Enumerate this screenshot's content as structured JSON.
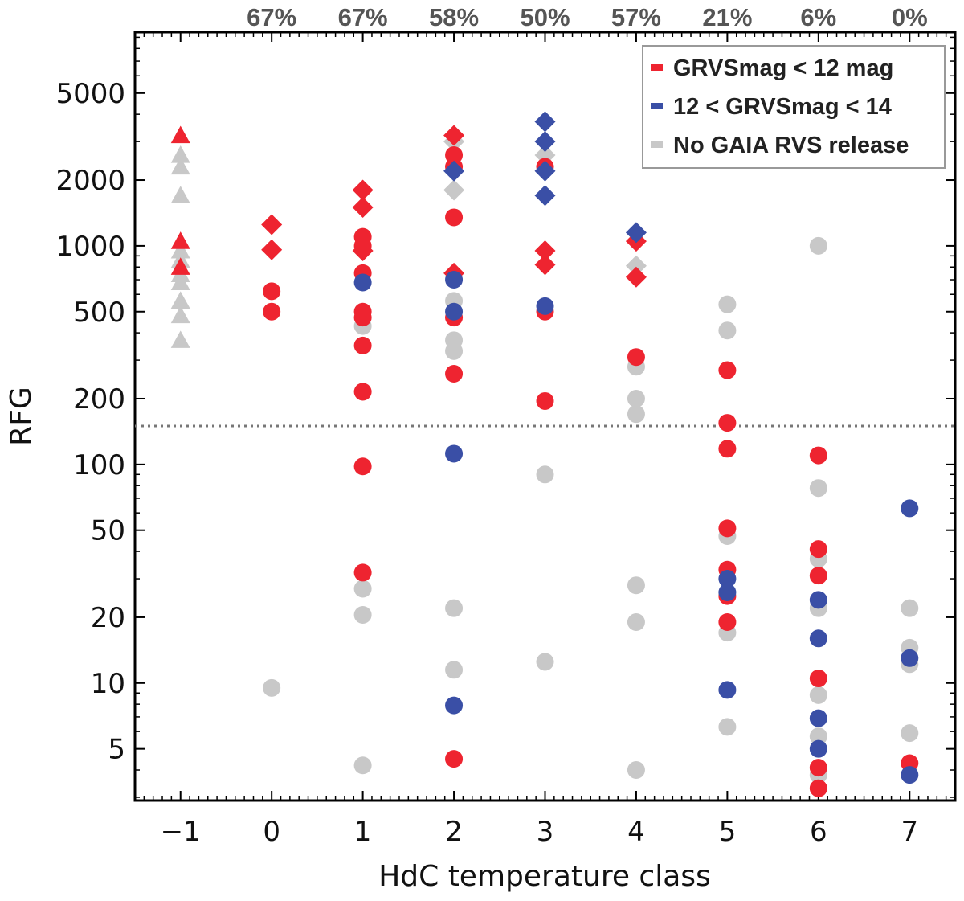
{
  "chart_data": {
    "type": "scatter",
    "xlabel": "HdC temperature class",
    "ylabel": "RFG",
    "yscale": "log",
    "xlim": [
      -1.5,
      7.5
    ],
    "ylim": [
      2.9,
      9500
    ],
    "x_ticks": [
      -1,
      0,
      1,
      2,
      3,
      4,
      5,
      6,
      7
    ],
    "x_tick_labels": [
      "−1",
      "0",
      "1",
      "2",
      "3",
      "4",
      "5",
      "6",
      "7"
    ],
    "y_ticks": [
      5,
      10,
      20,
      50,
      100,
      200,
      500,
      1000,
      2000,
      5000
    ],
    "y_tick_labels": [
      "5",
      "10",
      "20",
      "50",
      "100",
      "200",
      "500",
      "1000",
      "2000",
      "5000"
    ],
    "threshold_line": 150,
    "top_percentages": [
      "67%",
      "67%",
      "58%",
      "50%",
      "57%",
      "21%",
      "6%",
      "0%"
    ],
    "top_percentage_x": [
      0,
      1,
      2,
      3,
      4,
      5,
      6,
      7
    ],
    "legend": {
      "position": "top-right",
      "entries": [
        {
          "label": "GRVSmag < 12 mag",
          "color": "#ee2430"
        },
        {
          "label": "12 < GRVSmag < 14",
          "color": "#3a4fa6"
        },
        {
          "label": "No GAIA RVS release",
          "color": "#c8c8c8"
        }
      ]
    },
    "colors": {
      "red": "#ee2430",
      "blue": "#3a4fa6",
      "gray": "#c8c8c8"
    },
    "series": [
      {
        "name": "No GAIA RVS release",
        "color": "gray",
        "points": [
          [
            -1,
            2600,
            "triangle"
          ],
          [
            -1,
            2300,
            "triangle"
          ],
          [
            -1,
            1700,
            "triangle"
          ],
          [
            -1,
            950,
            "triangle"
          ],
          [
            -1,
            860,
            "triangle"
          ],
          [
            -1,
            740,
            "triangle"
          ],
          [
            -1,
            680,
            "triangle"
          ],
          [
            -1,
            560,
            "triangle"
          ],
          [
            -1,
            480,
            "triangle"
          ],
          [
            -1,
            370,
            "triangle"
          ],
          [
            0,
            9.5,
            "circle"
          ],
          [
            1,
            430,
            "circle"
          ],
          [
            1,
            27,
            "circle"
          ],
          [
            1,
            20.5,
            "circle"
          ],
          [
            1,
            4.2,
            "circle"
          ],
          [
            2,
            3000,
            "diamond"
          ],
          [
            2,
            1800,
            "diamond"
          ],
          [
            2,
            560,
            "circle"
          ],
          [
            2,
            370,
            "circle"
          ],
          [
            2,
            330,
            "circle"
          ],
          [
            2,
            22,
            "circle"
          ],
          [
            2,
            11.5,
            "circle"
          ],
          [
            3,
            2600,
            "diamond"
          ],
          [
            3,
            90,
            "circle"
          ],
          [
            3,
            12.5,
            "circle"
          ],
          [
            4,
            810,
            "diamond"
          ],
          [
            4,
            280,
            "circle"
          ],
          [
            4,
            200,
            "circle"
          ],
          [
            4,
            170,
            "circle"
          ],
          [
            4,
            28,
            "circle"
          ],
          [
            4,
            19,
            "circle"
          ],
          [
            4,
            4.0,
            "circle"
          ],
          [
            5,
            540,
            "circle"
          ],
          [
            5,
            410,
            "circle"
          ],
          [
            5,
            47,
            "circle"
          ],
          [
            5,
            17,
            "circle"
          ],
          [
            5,
            6.3,
            "circle"
          ],
          [
            6,
            1000,
            "circle"
          ],
          [
            6,
            78,
            "circle"
          ],
          [
            6,
            37,
            "circle"
          ],
          [
            6,
            22,
            "circle"
          ],
          [
            6,
            8.8,
            "circle"
          ],
          [
            6,
            5.7,
            "circle"
          ],
          [
            6,
            3.8,
            "circle"
          ],
          [
            7,
            22,
            "circle"
          ],
          [
            7,
            14.5,
            "circle"
          ],
          [
            7,
            12.2,
            "circle"
          ],
          [
            7,
            5.9,
            "circle"
          ]
        ]
      },
      {
        "name": "GRVSmag < 12 mag",
        "color": "red",
        "points": [
          [
            -1,
            3200,
            "triangle"
          ],
          [
            -1,
            1050,
            "triangle"
          ],
          [
            -1,
            800,
            "triangle"
          ],
          [
            0,
            1250,
            "diamond"
          ],
          [
            0,
            960,
            "diamond"
          ],
          [
            0,
            620,
            "circle"
          ],
          [
            0,
            500,
            "circle"
          ],
          [
            1,
            1800,
            "diamond"
          ],
          [
            1,
            1500,
            "diamond"
          ],
          [
            1,
            1100,
            "circle"
          ],
          [
            1,
            1000,
            "circle"
          ],
          [
            1,
            950,
            "diamond"
          ],
          [
            1,
            750,
            "circle"
          ],
          [
            1,
            500,
            "circle"
          ],
          [
            1,
            470,
            "circle"
          ],
          [
            1,
            350,
            "circle"
          ],
          [
            1,
            215,
            "circle"
          ],
          [
            1,
            98,
            "circle"
          ],
          [
            1,
            32,
            "circle"
          ],
          [
            2,
            3200,
            "diamond"
          ],
          [
            2,
            2600,
            "circle"
          ],
          [
            2,
            2300,
            "circle"
          ],
          [
            2,
            1350,
            "circle"
          ],
          [
            2,
            750,
            "diamond"
          ],
          [
            2,
            470,
            "circle"
          ],
          [
            2,
            260,
            "circle"
          ],
          [
            2,
            4.5,
            "circle"
          ],
          [
            3,
            2300,
            "circle"
          ],
          [
            3,
            950,
            "diamond"
          ],
          [
            3,
            820,
            "diamond"
          ],
          [
            3,
            500,
            "circle"
          ],
          [
            3,
            195,
            "circle"
          ],
          [
            4,
            1050,
            "diamond"
          ],
          [
            4,
            720,
            "diamond"
          ],
          [
            4,
            310,
            "circle"
          ],
          [
            5,
            270,
            "circle"
          ],
          [
            5,
            155,
            "circle"
          ],
          [
            5,
            118,
            "circle"
          ],
          [
            5,
            51,
            "circle"
          ],
          [
            5,
            33,
            "circle"
          ],
          [
            5,
            25,
            "circle"
          ],
          [
            5,
            19,
            "circle"
          ],
          [
            6,
            110,
            "circle"
          ],
          [
            6,
            41,
            "circle"
          ],
          [
            6,
            31,
            "circle"
          ],
          [
            6,
            10.5,
            "circle"
          ],
          [
            6,
            4.1,
            "circle"
          ],
          [
            6,
            3.3,
            "circle"
          ],
          [
            7,
            4.3,
            "circle"
          ]
        ]
      },
      {
        "name": "12 < GRVSmag < 14",
        "color": "blue",
        "points": [
          [
            1,
            680,
            "circle"
          ],
          [
            2,
            2200,
            "diamond"
          ],
          [
            2,
            700,
            "circle"
          ],
          [
            2,
            500,
            "circle"
          ],
          [
            2,
            112,
            "circle"
          ],
          [
            2,
            7.9,
            "circle"
          ],
          [
            3,
            3700,
            "diamond"
          ],
          [
            3,
            3000,
            "diamond"
          ],
          [
            3,
            2200,
            "diamond"
          ],
          [
            3,
            1700,
            "diamond"
          ],
          [
            3,
            530,
            "circle"
          ],
          [
            4,
            1150,
            "diamond"
          ],
          [
            5,
            30,
            "circle"
          ],
          [
            5,
            26,
            "circle"
          ],
          [
            5,
            9.3,
            "circle"
          ],
          [
            6,
            24,
            "circle"
          ],
          [
            6,
            16,
            "circle"
          ],
          [
            6,
            6.9,
            "circle"
          ],
          [
            6,
            5.0,
            "circle"
          ],
          [
            7,
            63,
            "circle"
          ],
          [
            7,
            13,
            "circle"
          ],
          [
            7,
            3.8,
            "circle"
          ]
        ]
      }
    ]
  }
}
